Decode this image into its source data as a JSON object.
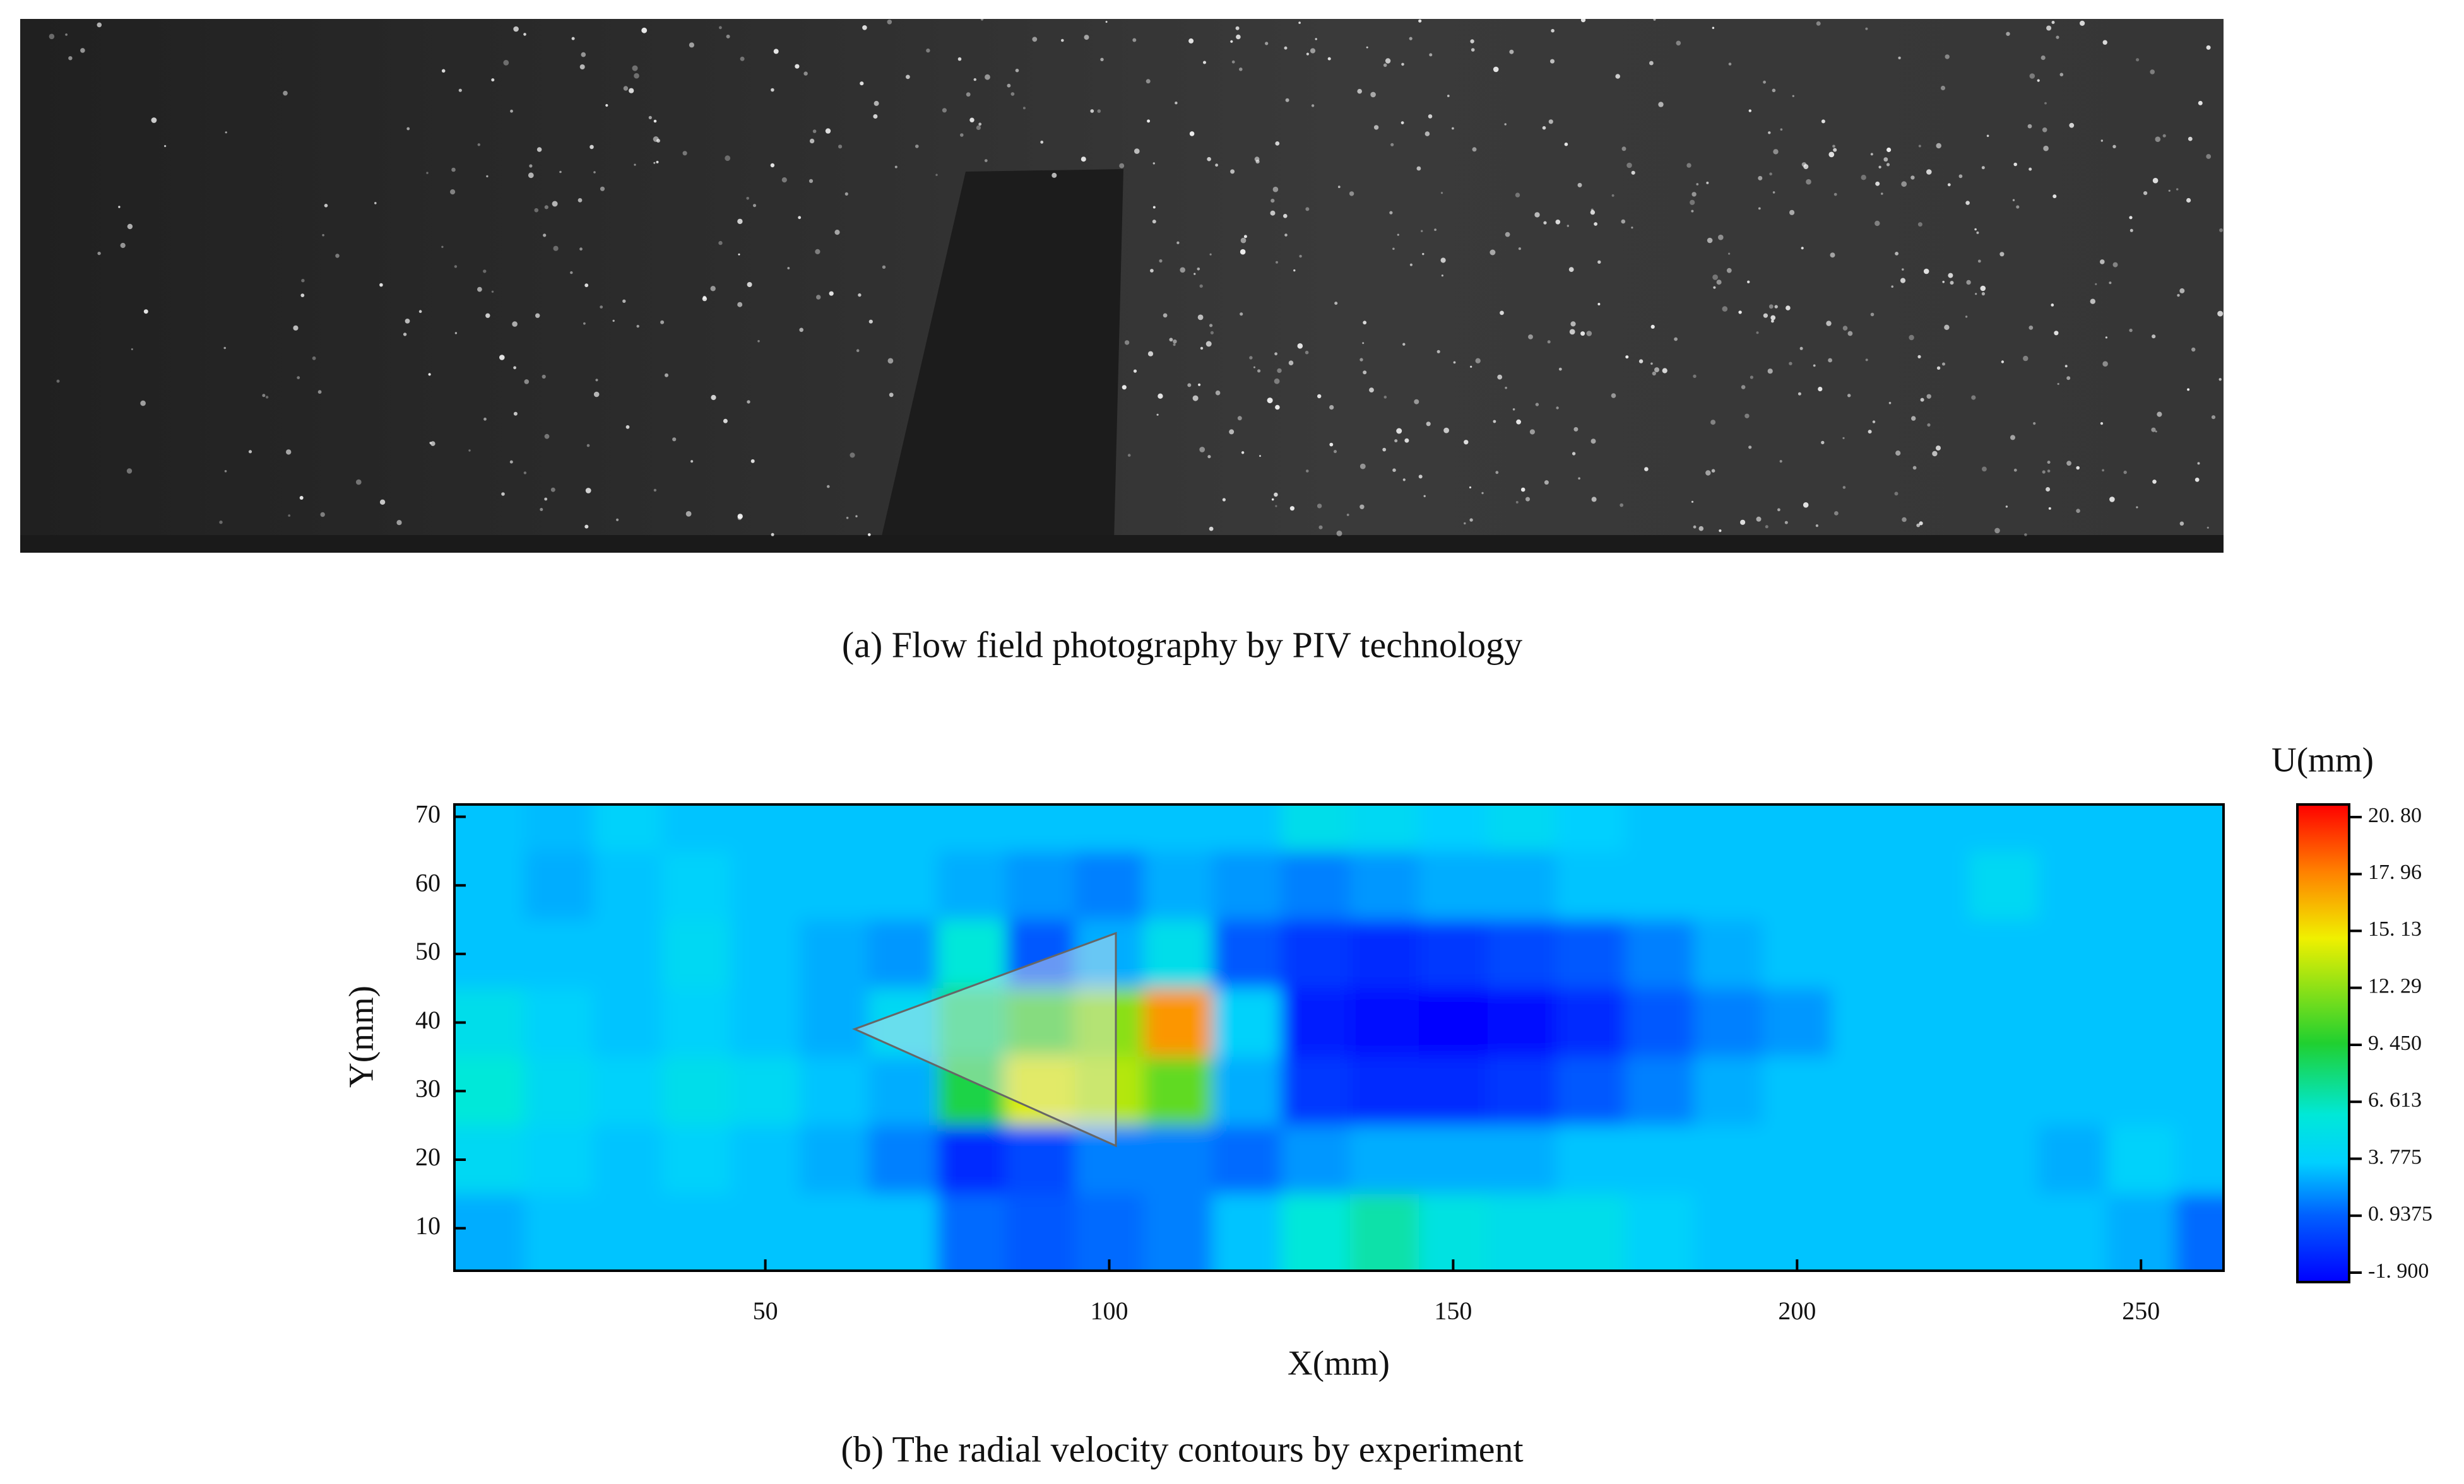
{
  "photo": {
    "caption": "(a) Flow field photography by PIV technology"
  },
  "chart_data": {
    "type": "contour",
    "title": "(b) The radial velocity contours by experiment",
    "xlabel": "X(mm)",
    "ylabel": "Y(mm)",
    "xlim": [
      4.8,
      262
    ],
    "ylim": [
      3.8,
      71.8
    ],
    "xticks": [
      50,
      100,
      150,
      200,
      250
    ],
    "yticks": [
      10,
      20,
      30,
      40,
      50,
      60,
      70
    ],
    "x": [
      10,
      20,
      30,
      40,
      50,
      60,
      70,
      80,
      90,
      100,
      110,
      120,
      130,
      140,
      150,
      160,
      170,
      180,
      190,
      200,
      210,
      220,
      230,
      240,
      250,
      260
    ],
    "y": [
      70,
      60,
      50,
      40,
      30,
      20,
      10
    ],
    "z": [
      [
        3.5,
        3.3,
        4.0,
        3.5,
        3.5,
        3.5,
        3.5,
        3.5,
        3.5,
        3.5,
        3.5,
        3.5,
        5.0,
        4.5,
        3.8,
        4.5,
        3.8,
        3.5,
        3.5,
        3.5,
        3.5,
        3.5,
        3.5,
        3.5,
        3.5,
        3.5
      ],
      [
        3.5,
        3.0,
        3.5,
        4.0,
        3.5,
        3.5,
        3.5,
        3.0,
        2.5,
        2.0,
        3.0,
        2.5,
        2.0,
        2.5,
        3.0,
        3.0,
        3.5,
        3.5,
        3.5,
        3.5,
        3.5,
        3.5,
        4.5,
        3.5,
        3.5,
        3.5
      ],
      [
        3.5,
        3.5,
        3.5,
        4.5,
        3.5,
        3.0,
        2.5,
        6.0,
        1.0,
        3.0,
        5.0,
        1.0,
        0.0,
        -0.5,
        0.0,
        0.5,
        1.0,
        2.0,
        3.0,
        3.5,
        3.5,
        3.5,
        3.5,
        3.5,
        3.5,
        3.5
      ],
      [
        5.0,
        4.0,
        3.5,
        4.0,
        3.5,
        3.0,
        4.5,
        8.0,
        10.0,
        12.0,
        17.0,
        4.0,
        -1.0,
        -1.5,
        -1.8,
        -1.5,
        -0.5,
        1.0,
        2.0,
        2.5,
        3.5,
        3.5,
        3.5,
        3.5,
        3.5,
        3.5
      ],
      [
        6.0,
        4.5,
        4.0,
        5.0,
        4.5,
        3.5,
        3.0,
        9.0,
        14.0,
        13.0,
        11.0,
        3.0,
        0.0,
        -0.5,
        -0.5,
        0.0,
        1.0,
        2.0,
        3.0,
        3.5,
        3.5,
        3.5,
        3.5,
        3.5,
        3.5,
        3.5
      ],
      [
        4.5,
        4.0,
        3.5,
        4.0,
        3.5,
        3.0,
        2.0,
        -0.5,
        0.5,
        2.0,
        2.0,
        1.5,
        2.5,
        3.0,
        3.0,
        3.0,
        3.5,
        3.5,
        3.5,
        3.5,
        3.5,
        3.5,
        3.5,
        3.0,
        4.0,
        3.5
      ],
      [
        3.0,
        3.5,
        3.5,
        3.5,
        3.5,
        3.5,
        3.5,
        1.5,
        1.0,
        1.5,
        2.0,
        3.5,
        6.0,
        7.0,
        5.5,
        5.0,
        5.0,
        4.0,
        3.5,
        3.5,
        3.5,
        3.5,
        3.5,
        3.5,
        3.0,
        1.5
      ]
    ],
    "colorbar": {
      "title": "U(mm)",
      "zlim": [
        -1.9,
        20.8
      ],
      "ticks": [
        {
          "value": 20.8,
          "label": "20. 80"
        },
        {
          "value": 17.96,
          "label": "17. 96"
        },
        {
          "value": 15.13,
          "label": "15. 13"
        },
        {
          "value": 12.29,
          "label": "12. 29"
        },
        {
          "value": 9.45,
          "label": "9. 450"
        },
        {
          "value": 6.613,
          "label": "6. 613"
        },
        {
          "value": 3.775,
          "label": "3. 775"
        },
        {
          "value": 0.9375,
          "label": "0. 9375"
        },
        {
          "value": -1.9,
          "label": "-1. 900"
        }
      ]
    }
  }
}
